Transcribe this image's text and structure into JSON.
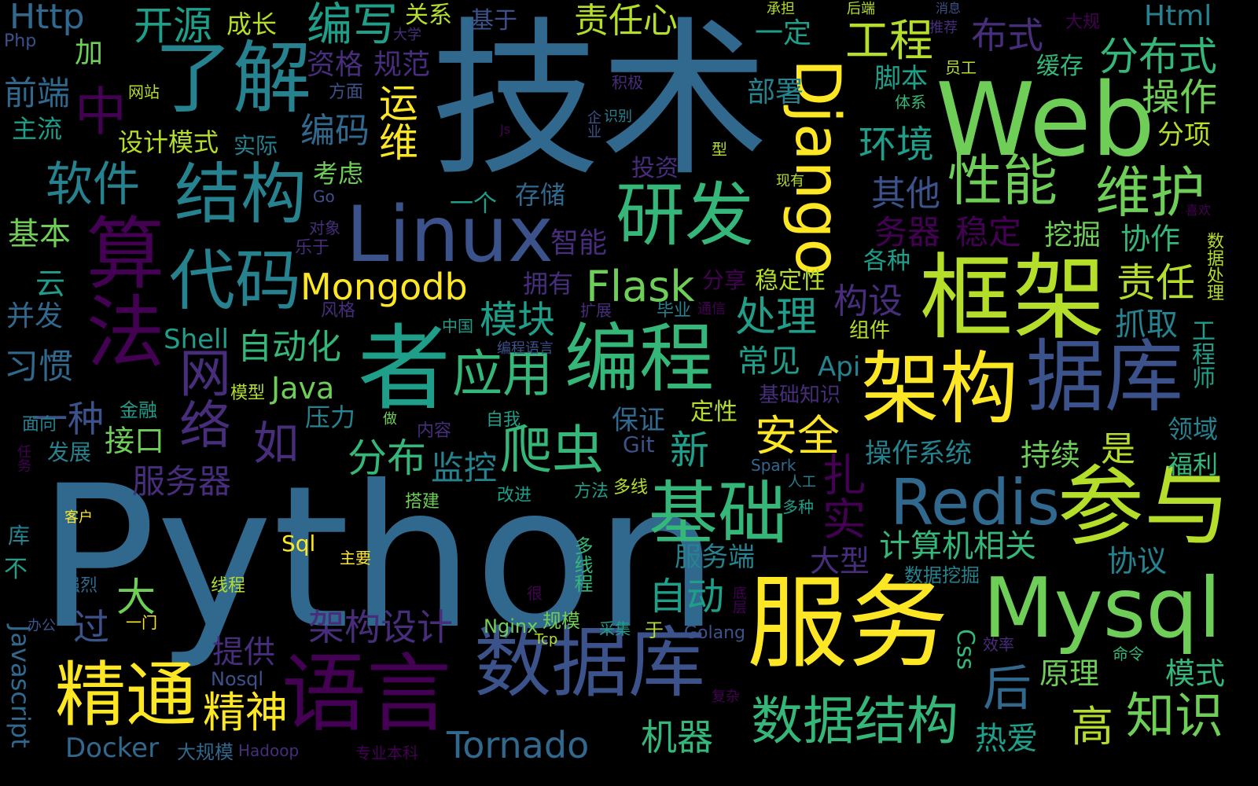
{
  "palette": {
    "dark_purple": "#440154",
    "indigo": "#472d7b",
    "blue_purple": "#3b528b",
    "steel_blue": "#31688e",
    "teal": "#26828e",
    "sea_green": "#1f9e89",
    "green": "#35b779",
    "light_green": "#6ece58",
    "lime": "#b5de2b",
    "yellow": "#fde725"
  },
  "words": [
    {
      "text": "Python",
      "color": "#31688e"
    },
    {
      "text": "技术",
      "color": "#31688e"
    },
    {
      "text": "Web",
      "color": "#6ece58"
    },
    {
      "text": "框架",
      "color": "#b5de2b"
    },
    {
      "text": "服务",
      "color": "#fde725"
    },
    {
      "text": "Linux",
      "color": "#3b528b"
    },
    {
      "text": "了解",
      "color": "#26828e"
    },
    {
      "text": "Django",
      "color": "#fde725"
    },
    {
      "text": "编程",
      "color": "#35b779"
    },
    {
      "text": "者",
      "color": "#1f9e89"
    },
    {
      "text": "数据库",
      "color": "#3b528b"
    },
    {
      "text": "Mysql",
      "color": "#6ece58"
    },
    {
      "text": "语言",
      "color": "#440154"
    },
    {
      "text": "架构",
      "color": "#fde725"
    },
    {
      "text": "据库",
      "color": "#3b528b"
    },
    {
      "text": "参与",
      "color": "#b5de2b"
    },
    {
      "text": "算法",
      "color": "#440154"
    },
    {
      "text": "研发",
      "color": "#35b779"
    },
    {
      "text": "结构",
      "color": "#26828e"
    },
    {
      "text": "代码",
      "color": "#26828e"
    },
    {
      "text": "精通",
      "color": "#fde725"
    },
    {
      "text": "基础",
      "color": "#35b779"
    },
    {
      "text": "Redis",
      "color": "#31688e"
    },
    {
      "text": "应用",
      "color": "#35b779"
    },
    {
      "text": "数据结构",
      "color": "#35b779"
    },
    {
      "text": "性能",
      "color": "#6ece58"
    },
    {
      "text": "维护",
      "color": "#6ece58"
    },
    {
      "text": "网络",
      "color": "#472d7b"
    },
    {
      "text": "爬虫",
      "color": "#35b779"
    },
    {
      "text": "Mongodb",
      "color": "#fde725"
    },
    {
      "text": "软件",
      "color": "#26828e"
    },
    {
      "text": "Tornado",
      "color": "#31688e"
    },
    {
      "text": "扎实",
      "color": "#440154"
    },
    {
      "text": "知识",
      "color": "#6ece58"
    },
    {
      "text": "分布式",
      "color": "#35b779"
    },
    {
      "text": "编写",
      "color": "#1f9e89"
    },
    {
      "text": "开源",
      "color": "#1f9e89"
    },
    {
      "text": "Flask",
      "color": "#6ece58"
    },
    {
      "text": "中",
      "color": "#440154"
    },
    {
      "text": "工程",
      "color": "#b5de2b"
    },
    {
      "text": "责任心",
      "color": "#b5de2b"
    },
    {
      "text": "Http",
      "color": "#31688e"
    },
    {
      "text": "运维",
      "color": "#fde725"
    },
    {
      "text": "环境",
      "color": "#1f9e89"
    },
    {
      "text": "处理",
      "color": "#1f9e89"
    },
    {
      "text": "模块",
      "color": "#1f9e89"
    },
    {
      "text": "安全",
      "color": "#fde725"
    },
    {
      "text": "新",
      "color": "#1f9e89"
    },
    {
      "text": "分布",
      "color": "#35b779"
    },
    {
      "text": "如",
      "color": "#472d7b"
    },
    {
      "text": "后",
      "color": "#31688e"
    },
    {
      "text": "高",
      "color": "#b5de2b"
    },
    {
      "text": "机器",
      "color": "#35b779"
    },
    {
      "text": "自动",
      "color": "#1f9e89"
    },
    {
      "text": "构设",
      "color": "#472d7b"
    },
    {
      "text": "计算机相关",
      "color": "#35b779"
    },
    {
      "text": "责任",
      "color": "#b5de2b"
    },
    {
      "text": "操作",
      "color": "#6ece58"
    },
    {
      "text": "布式",
      "color": "#472d7b"
    },
    {
      "text": "其他",
      "color": "#3b528b"
    },
    {
      "text": "稳定",
      "color": "#440154"
    },
    {
      "text": "务器",
      "color": "#440154"
    },
    {
      "text": "架构设计",
      "color": "#472d7b"
    },
    {
      "text": "精神",
      "color": "#fde725"
    },
    {
      "text": "一种",
      "color": "#3b528b"
    },
    {
      "text": "大",
      "color": "#6ece58"
    },
    {
      "text": "过",
      "color": "#3b528b"
    },
    {
      "text": "提供",
      "color": "#472d7b"
    },
    {
      "text": "Docker",
      "color": "#31688e"
    },
    {
      "text": "自动化",
      "color": "#35b779"
    },
    {
      "text": "服务器",
      "color": "#472d7b"
    },
    {
      "text": "监控",
      "color": "#26828e"
    },
    {
      "text": "Java",
      "color": "#6ece58"
    },
    {
      "text": "接口",
      "color": "#6ece58"
    },
    {
      "text": "常见",
      "color": "#1f9e89"
    },
    {
      "text": "服务端",
      "color": "#26828e"
    },
    {
      "text": "大型",
      "color": "#472d7b"
    },
    {
      "text": "协议",
      "color": "#26828e"
    },
    {
      "text": "热爱",
      "color": "#1f9e89"
    },
    {
      "text": "原理",
      "color": "#6ece58"
    },
    {
      "text": "模式",
      "color": "#35b779"
    },
    {
      "text": "持续",
      "color": "#6ece58"
    },
    {
      "text": "是",
      "color": "#b5de2b"
    },
    {
      "text": "操作系统",
      "color": "#26828e"
    },
    {
      "text": "抓取",
      "color": "#26828e"
    },
    {
      "text": "协作",
      "color": "#35b779"
    },
    {
      "text": "挖掘",
      "color": "#6ece58"
    },
    {
      "text": "各种",
      "color": "#1f9e89"
    },
    {
      "text": "编码",
      "color": "#31688e"
    },
    {
      "text": "部署",
      "color": "#26828e"
    },
    {
      "text": "脚本",
      "color": "#1f9e89"
    },
    {
      "text": "资格",
      "color": "#472d7b"
    },
    {
      "text": "规范",
      "color": "#472d7b"
    },
    {
      "text": "前端",
      "color": "#31688e"
    },
    {
      "text": "成长",
      "color": "#b5de2b"
    },
    {
      "text": "关系",
      "color": "#b5de2b"
    },
    {
      "text": "基于",
      "color": "#3b528b"
    },
    {
      "text": "一定",
      "color": "#1f9e89"
    },
    {
      "text": "缓存",
      "color": "#35b779"
    },
    {
      "text": "分项",
      "color": "#b5de2b"
    },
    {
      "text": "Html",
      "color": "#26828e"
    },
    {
      "text": "加",
      "color": "#6ece58"
    },
    {
      "text": "主流",
      "color": "#1f9e89"
    },
    {
      "text": "设计模式",
      "color": "#b5de2b"
    },
    {
      "text": "实际",
      "color": "#26828e"
    },
    {
      "text": "考虑",
      "color": "#6ece58"
    },
    {
      "text": "存储",
      "color": "#31688e"
    },
    {
      "text": "投资",
      "color": "#472d7b"
    },
    {
      "text": "智能",
      "color": "#472d7b"
    },
    {
      "text": "一个",
      "color": "#1f9e89"
    },
    {
      "text": "基本",
      "color": "#6ece58"
    },
    {
      "text": "云",
      "color": "#1f9e89"
    },
    {
      "text": "并发",
      "color": "#31688e"
    },
    {
      "text": "习惯",
      "color": "#31688e"
    },
    {
      "text": "Shell",
      "color": "#1f9e89"
    },
    {
      "text": "拥有",
      "color": "#472d7b"
    },
    {
      "text": "分享",
      "color": "#440154"
    },
    {
      "text": "稳定性",
      "color": "#b5de2b"
    },
    {
      "text": "Api",
      "color": "#26828e"
    },
    {
      "text": "压力",
      "color": "#26828e"
    },
    {
      "text": "保证",
      "color": "#31688e"
    },
    {
      "text": "定性",
      "color": "#b5de2b"
    },
    {
      "text": "Git",
      "color": "#3b528b"
    },
    {
      "text": "发展",
      "color": "#26828e"
    },
    {
      "text": "领域",
      "color": "#26828e"
    },
    {
      "text": "福利",
      "color": "#35b779"
    },
    {
      "text": "工程师",
      "color": "#1f9e89"
    },
    {
      "text": "数据处理",
      "color": "#b5de2b"
    },
    {
      "text": "Sql",
      "color": "#fde725"
    },
    {
      "text": "Nginx",
      "color": "#6ece58"
    },
    {
      "text": "规模",
      "color": "#6ece58"
    },
    {
      "text": "Golang",
      "color": "#3b528b"
    },
    {
      "text": "Css",
      "color": "#35b779"
    },
    {
      "text": "Javascript",
      "color": "#31688e"
    },
    {
      "text": "多线程",
      "color": "#35b779"
    },
    {
      "text": "数据挖掘",
      "color": "#26828e"
    },
    {
      "text": "Nosql",
      "color": "#3b528b"
    },
    {
      "text": "大规模",
      "color": "#31688e"
    },
    {
      "text": "Hadoop",
      "color": "#472d7b"
    },
    {
      "text": "专业本科",
      "color": "#440154"
    },
    {
      "text": "Spark",
      "color": "#31688e"
    },
    {
      "text": "搭建",
      "color": "#6ece58"
    },
    {
      "text": "改进",
      "color": "#1f9e89"
    },
    {
      "text": "方法",
      "color": "#1f9e89"
    },
    {
      "text": "多线",
      "color": "#b5de2b"
    },
    {
      "text": "人工",
      "color": "#26828e"
    },
    {
      "text": "多种",
      "color": "#1f9e89"
    },
    {
      "text": "线程",
      "color": "#b5de2b"
    },
    {
      "text": "主要",
      "color": "#fde725"
    },
    {
      "text": "强烈",
      "color": "#31688e"
    },
    {
      "text": "很",
      "color": "#440154"
    },
    {
      "text": "一门",
      "color": "#fde725"
    },
    {
      "text": "采集",
      "color": "#1f9e89"
    },
    {
      "text": "于",
      "color": "#b5de2b"
    },
    {
      "text": "Tcp",
      "color": "#b5de2b"
    },
    {
      "text": "效率",
      "color": "#472d7b"
    },
    {
      "text": "命令",
      "color": "#35b779"
    },
    {
      "text": "复杂",
      "color": "#440154"
    },
    {
      "text": "底层",
      "color": "#440154"
    },
    {
      "text": "客户",
      "color": "#fde725"
    },
    {
      "text": "库",
      "color": "#26828e"
    },
    {
      "text": "不",
      "color": "#1f9e89"
    },
    {
      "text": "任务",
      "color": "#440154"
    },
    {
      "text": "办公",
      "color": "#3b528b"
    },
    {
      "text": "面向",
      "color": "#26828e"
    },
    {
      "text": "金融",
      "color": "#1f9e89"
    },
    {
      "text": "模型",
      "color": "#b5de2b"
    },
    {
      "text": "做",
      "color": "#6ece58"
    },
    {
      "text": "内容",
      "color": "#472d7b"
    },
    {
      "text": "自我",
      "color": "#1f9e89"
    },
    {
      "text": "基础知识",
      "color": "#472d7b"
    },
    {
      "text": "组件",
      "color": "#b5de2b"
    },
    {
      "text": "通信",
      "color": "#440154"
    },
    {
      "text": "毕业",
      "color": "#26828e"
    },
    {
      "text": "扩展",
      "color": "#472d7b"
    },
    {
      "text": "中国",
      "color": "#1f9e89"
    },
    {
      "text": "编程语言",
      "color": "#3b528b"
    },
    {
      "text": "风格",
      "color": "#472d7b"
    },
    {
      "text": "乐于",
      "color": "#472d7b"
    },
    {
      "text": "对象",
      "color": "#472d7b"
    },
    {
      "text": "Go",
      "color": "#3b528b"
    },
    {
      "text": "现有",
      "color": "#b5de2b"
    },
    {
      "text": "型",
      "color": "#b5de2b"
    },
    {
      "text": "Js",
      "color": "#440154"
    },
    {
      "text": "企业",
      "color": "#3b528b"
    },
    {
      "text": "识别",
      "color": "#26828e"
    },
    {
      "text": "积极",
      "color": "#472d7b"
    },
    {
      "text": "体系",
      "color": "#35b779"
    },
    {
      "text": "员工",
      "color": "#b5de2b"
    },
    {
      "text": "推荐",
      "color": "#472d7b"
    },
    {
      "text": "承担",
      "color": "#b5de2b"
    },
    {
      "text": "后端",
      "color": "#b5de2b"
    },
    {
      "text": "消息",
      "color": "#3b528b"
    },
    {
      "text": "大规",
      "color": "#440154"
    },
    {
      "text": "大学",
      "color": "#472d7b"
    },
    {
      "text": "Php",
      "color": "#3b528b"
    },
    {
      "text": "网站",
      "color": "#b5de2b"
    },
    {
      "text": "方面",
      "color": "#3b528b"
    },
    {
      "text": "喜欢",
      "color": "#440154"
    }
  ]
}
